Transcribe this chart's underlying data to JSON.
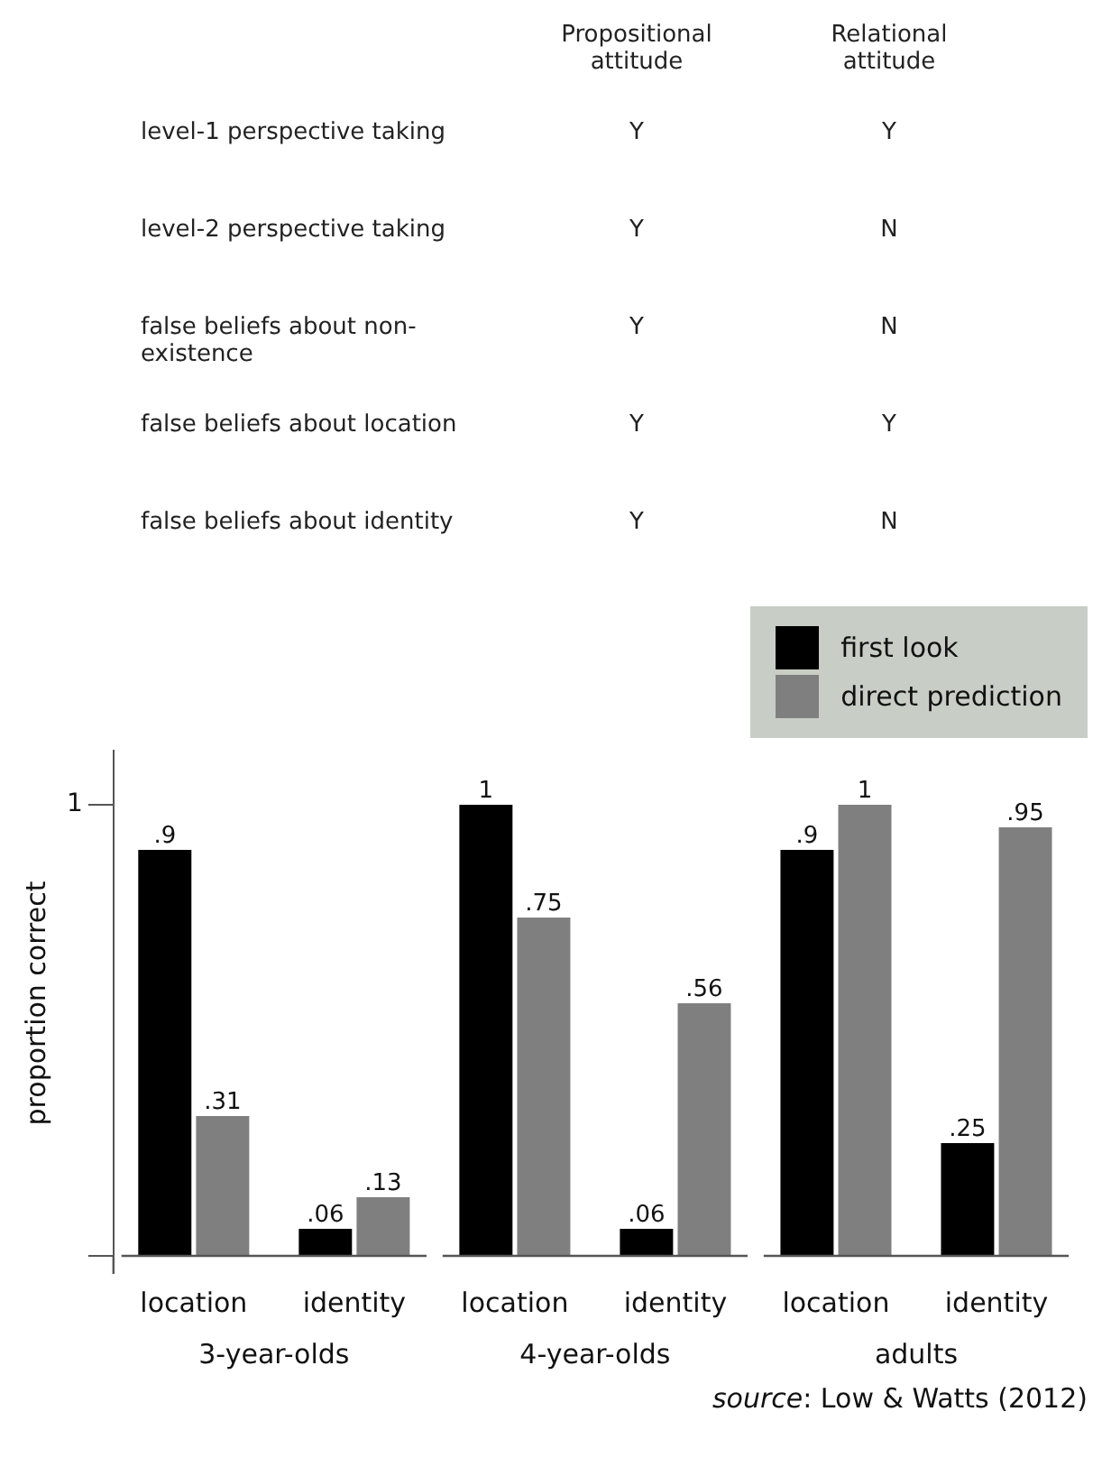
{
  "chart_data": [
    {
      "type": "other",
      "annotations": [
        "Propositional attitude",
        "Relational attitude",
        "level-1 perspective taking",
        "Y",
        "Y",
        "level-2 perspective taking",
        "Y",
        "N",
        "false beliefs about non-existence",
        "Y",
        "N",
        "false beliefs about location",
        "Y",
        "Y",
        "false beliefs about identity",
        "Y",
        "N"
      ]
    },
    {
      "type": "bar",
      "categories": [
        "location",
        "identity",
        "location",
        "identity",
        "location",
        "identity"
      ],
      "series": [
        {
          "name": "first look",
          "color": "#000000",
          "values": [
            0.9,
            0.06,
            1,
            0.06,
            0.9,
            0.25
          ],
          "value_labels": [
            ".9",
            ".06",
            "1",
            ".06",
            ".9",
            ".25"
          ]
        },
        {
          "name": "direct prediction",
          "color": "#7f7f7f",
          "values": [
            0.31,
            0.13,
            0.75,
            0.56,
            1,
            0.95
          ],
          "value_labels": [
            ".31",
            ".13",
            ".75",
            ".56",
            "1",
            ".95"
          ]
        }
      ],
      "ylabel": "proportion correct",
      "ylim": [
        0,
        1.12
      ],
      "yticks": [
        {
          "value": 0,
          "label": null
        },
        1
      ],
      "legend": "top right",
      "annotations": [
        "3-year-olds",
        "4-year-olds",
        "adults",
        "source: Low & Watts (2012)"
      ]
    }
  ]
}
